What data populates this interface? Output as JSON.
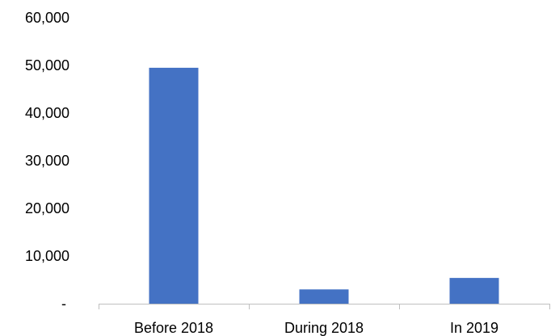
{
  "chart_data": {
    "type": "bar",
    "categories": [
      "Before 2018",
      "During 2018",
      "In 2019"
    ],
    "values": [
      49500,
      3000,
      5400
    ],
    "ylim": [
      0,
      60000
    ],
    "yticks": [
      0,
      10000,
      20000,
      30000,
      40000,
      50000,
      60000
    ],
    "ytick_labels": [
      "-",
      "10,000",
      "20,000",
      "30,000",
      "40,000",
      "50,000",
      "60,000"
    ],
    "title": "",
    "xlabel": "",
    "ylabel": "",
    "grid": false,
    "legend": "none",
    "bar_color": "#4472c4"
  }
}
